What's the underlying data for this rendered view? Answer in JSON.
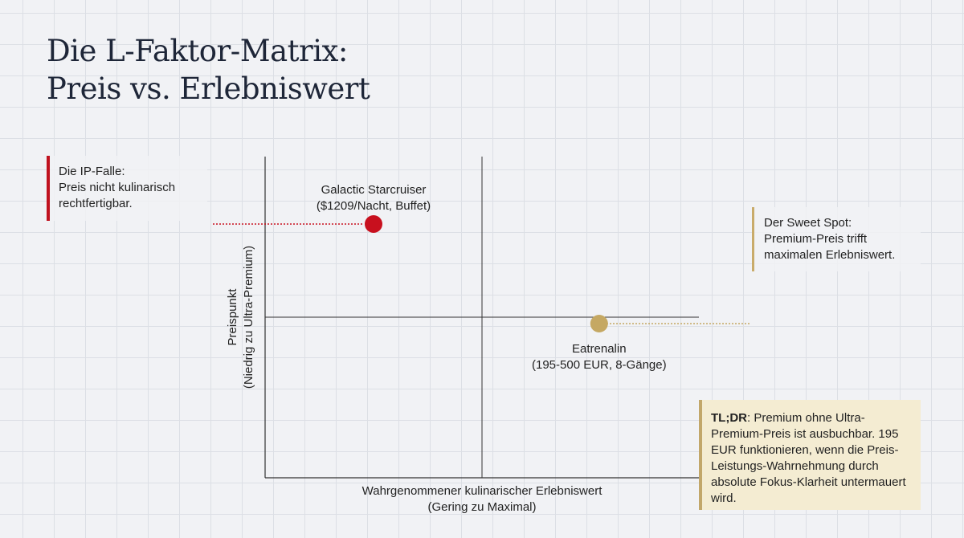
{
  "title": {
    "line1": "Die L-Faktor-Matrix:",
    "line2": "Preis vs. Erlebniswert"
  },
  "axes": {
    "y_label": "Preispunkt",
    "y_sublabel": "(Niedrig zu Ultra-Premium)",
    "x_label": "Wahrgenommener kulinarischer Erlebniswert",
    "x_sublabel": "(Gering zu Maximal)"
  },
  "points": [
    {
      "name": "Galactic Starcruiser",
      "detail": "($1209/Nacht, Buffet)",
      "experience": 0.25,
      "price": 0.79,
      "color": "#c8101e"
    },
    {
      "name": "Eatrenalin",
      "detail": "(195-500 EUR, 8-Gänge)",
      "experience": 0.77,
      "price": 0.48,
      "color": "#c5a863"
    }
  ],
  "callouts": {
    "ip_trap": {
      "line1": "Die IP-Falle:",
      "line2": "Preis nicht kulinarisch",
      "line3": "rechtfertigbar.",
      "color": "#c0121f"
    },
    "sweet_spot": {
      "line1": "Der Sweet Spot:",
      "line2": "Premium-Preis trifft",
      "line3": "maximalen Erlebniswert.",
      "color": "#c9ab6a"
    }
  },
  "tldr": {
    "label": "TL;DR",
    "text": ": Premium ohne Ultra-Premium-Preis ist ausbuchbar. 195 EUR funktionieren, wenn die Preis-Leistungs-Wahrnehmung durch absolute Fokus-Klarheit untermauert wird."
  }
}
